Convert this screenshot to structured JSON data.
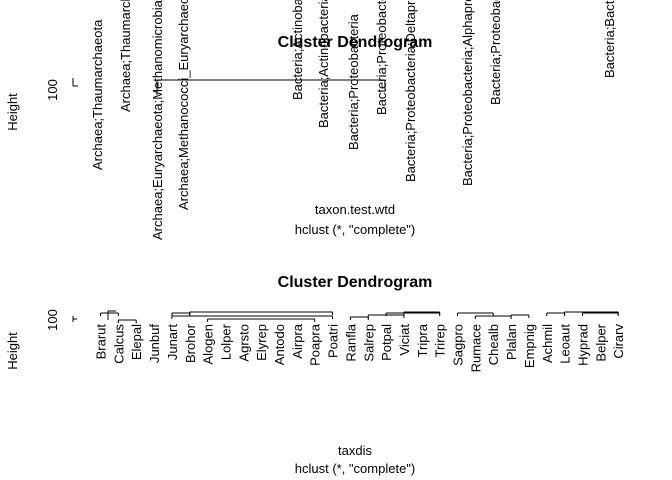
{
  "chart_data": [
    {
      "type": "dendrogram",
      "title": "Cluster Dendrogram",
      "ylabel": "Height",
      "xlabel": "taxon.test.wtd",
      "sublabel": "hclust (*, \"complete\")",
      "yticks": [
        "100"
      ],
      "leaves": [
        "Archaea;Thaumarchaeota",
        "Archaea;Thaumarchaeota",
        "Archaea;Euryarchaeota;Methanomicrobia_Eury;Methanosarcinales",
        "Archaea;Methanococci_Euryarchaeota",
        "Bacteria;Actinobacteria",
        "Bacteria;Actinobacteria",
        "Bacteria;Proteobacteria",
        "Bacteria;Proteobacteria",
        "Bacteria;Proteobacteria;Deltaproteobacteria",
        "Bacteria;Proteobacteria;Alphaproteobacteria",
        "Bacteria;Proteobacteria",
        "Bacteria;Bacteroidetes"
      ]
    },
    {
      "type": "dendrogram",
      "title": "Cluster Dendrogram",
      "ylabel": "Height",
      "xlabel": "taxdis",
      "sublabel": "hclust (*, \"complete\")",
      "yticks": [
        "100"
      ],
      "leaves": [
        "Brarut",
        "Calcus",
        "Elepal",
        "Junbuf",
        "Junart",
        "Brohor",
        "Alogen",
        "Lolper",
        "Agrsto",
        "Elyrep",
        "Antodo",
        "Airpra",
        "Poapra",
        "Poatri",
        "Ranfla",
        "Salrep",
        "Potpal",
        "Viciat",
        "Tripra",
        "Trirep",
        "Sagpro",
        "Rumace",
        "Chealb",
        "Plalan",
        "Empnig",
        "Achmil",
        "Leoaut",
        "Hyprad",
        "Belper",
        "Cirarv"
      ]
    }
  ]
}
